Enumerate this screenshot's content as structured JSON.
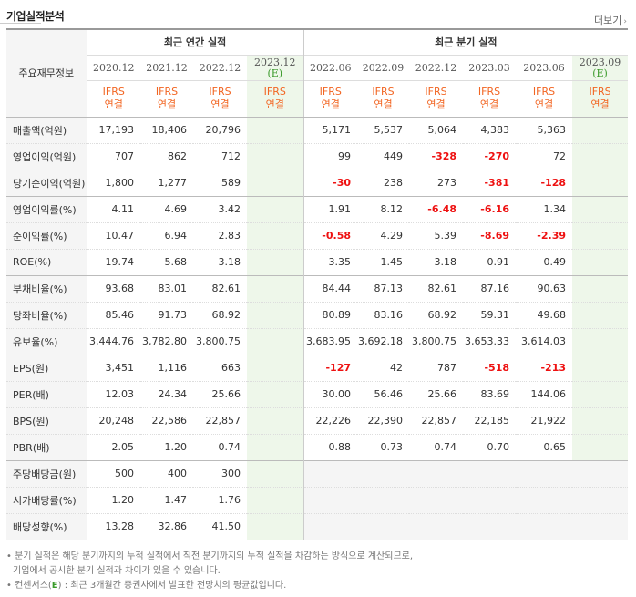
{
  "header": {
    "title": "기업실적분석",
    "more_label": "더보기",
    "more_icon": "chevron-right-icon"
  },
  "table": {
    "row_header_label": "주요재무정보",
    "annual_group_label": "최근 연간 실적",
    "quarter_group_label": "최근 분기 실적",
    "annual_periods": [
      "2020.12",
      "2021.12",
      "2022.12",
      "2023.12"
    ],
    "annual_est_mark": "(E)",
    "quarter_periods": [
      "2022.06",
      "2022.09",
      "2022.12",
      "2023.03",
      "2023.06",
      "2023.09"
    ],
    "quarter_est_mark": "(E)",
    "ifrs_top": "IFRS",
    "ifrs_bottom": "연결",
    "rows": [
      {
        "label": "매출액(억원)",
        "annual": [
          "17,193",
          "18,406",
          "20,796",
          ""
        ],
        "quarter": [
          "5,171",
          "5,537",
          "5,064",
          "4,383",
          "5,363",
          ""
        ]
      },
      {
        "label": "영업이익(억원)",
        "annual": [
          "707",
          "862",
          "712",
          ""
        ],
        "quarter": [
          "99",
          "449",
          "-328",
          "-270",
          "72",
          ""
        ]
      },
      {
        "label": "당기순이익(억원)",
        "annual": [
          "1,800",
          "1,277",
          "589",
          ""
        ],
        "quarter": [
          "-30",
          "238",
          "273",
          "-381",
          "-128",
          ""
        ]
      },
      {
        "label": "영업이익률(%)",
        "annual": [
          "4.11",
          "4.69",
          "3.42",
          ""
        ],
        "quarter": [
          "1.91",
          "8.12",
          "-6.48",
          "-6.16",
          "1.34",
          ""
        ]
      },
      {
        "label": "순이익률(%)",
        "annual": [
          "10.47",
          "6.94",
          "2.83",
          ""
        ],
        "quarter": [
          "-0.58",
          "4.29",
          "5.39",
          "-8.69",
          "-2.39",
          ""
        ]
      },
      {
        "label": "ROE(%)",
        "annual": [
          "19.74",
          "5.68",
          "3.18",
          ""
        ],
        "quarter": [
          "3.35",
          "1.45",
          "3.18",
          "0.91",
          "0.49",
          ""
        ]
      },
      {
        "label": "부채비율(%)",
        "annual": [
          "93.68",
          "83.01",
          "82.61",
          ""
        ],
        "quarter": [
          "84.44",
          "87.13",
          "82.61",
          "87.16",
          "90.63",
          ""
        ]
      },
      {
        "label": "당좌비율(%)",
        "annual": [
          "85.46",
          "91.73",
          "68.92",
          ""
        ],
        "quarter": [
          "80.89",
          "83.16",
          "68.92",
          "59.31",
          "49.68",
          ""
        ]
      },
      {
        "label": "유보율(%)",
        "annual": [
          "3,444.76",
          "3,782.80",
          "3,800.75",
          ""
        ],
        "quarter": [
          "3,683.95",
          "3,692.18",
          "3,800.75",
          "3,653.33",
          "3,614.03",
          ""
        ]
      },
      {
        "label": "EPS(원)",
        "annual": [
          "3,451",
          "1,116",
          "663",
          ""
        ],
        "quarter": [
          "-127",
          "42",
          "787",
          "-518",
          "-213",
          ""
        ]
      },
      {
        "label": "PER(배)",
        "annual": [
          "12.03",
          "24.34",
          "25.66",
          ""
        ],
        "quarter": [
          "30.00",
          "56.46",
          "25.66",
          "83.69",
          "144.06",
          ""
        ]
      },
      {
        "label": "BPS(원)",
        "annual": [
          "20,248",
          "22,586",
          "22,857",
          ""
        ],
        "quarter": [
          "22,226",
          "22,390",
          "22,857",
          "22,185",
          "21,922",
          ""
        ]
      },
      {
        "label": "PBR(배)",
        "annual": [
          "2.05",
          "1.20",
          "0.74",
          ""
        ],
        "quarter": [
          "0.88",
          "0.73",
          "0.74",
          "0.70",
          "0.65",
          ""
        ]
      },
      {
        "label": "주당배당금(원)",
        "annual": [
          "500",
          "400",
          "300",
          ""
        ],
        "quarter": [
          "",
          "",
          "",
          "",
          "",
          ""
        ]
      },
      {
        "label": "시가배당률(%)",
        "annual": [
          "1.20",
          "1.47",
          "1.76",
          ""
        ],
        "quarter": [
          "",
          "",
          "",
          "",
          "",
          ""
        ]
      },
      {
        "label": "배당성향(%)",
        "annual": [
          "13.28",
          "32.86",
          "41.50",
          ""
        ],
        "quarter": [
          "",
          "",
          "",
          "",
          "",
          ""
        ]
      }
    ]
  },
  "notes": {
    "line1": "분기 실적은 해당 분기까지의 누적 실적에서 직전 분기까지의 누적 실적을 차감하는 방식으로 계산되므로,",
    "line2": "기업에서 공시한 분기 실적과 차이가 있을 수 있습니다.",
    "line3_prefix": "컨센서스(",
    "line3_mark": "E",
    "line3_suffix": ") : 최근 3개월간 증권사에서 발표한 전망치의 평균값입니다.",
    "bullet": "•"
  },
  "colors": {
    "negative": "#ee1111",
    "ifrs": "#f26522",
    "estimate_bg": "#eef7ea"
  }
}
